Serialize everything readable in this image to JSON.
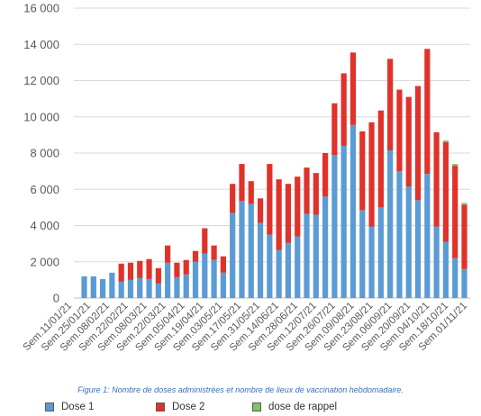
{
  "chart_data": {
    "type": "bar",
    "stacked": true,
    "caption": "Figure 1: Nombre de doses administrées et nombre de lieux de vaccination hebdomadaire.",
    "ylim": [
      0,
      16000
    ],
    "y_ticks": [
      "0",
      "2 000",
      "4 000",
      "6 000",
      "8 000",
      "10 000",
      "12 000",
      "14 000",
      "16 000"
    ],
    "y_tick_values": [
      0,
      2000,
      4000,
      6000,
      8000,
      10000,
      12000,
      14000,
      16000
    ],
    "grid": "horizontal",
    "legend_position": "bottom",
    "x_tick_labels": [
      "Sem.11/01/21",
      "Sem.25/01/21",
      "Sem.08/02/21",
      "Sem.22/02/21",
      "Sem.08/03/21",
      "Sem.22/03/21",
      "Sem.05/04/21",
      "Sem.19/04/21",
      "Sem.03/05/21",
      "Sem.17/05/21",
      "Sem.31/05/21",
      "Sem.14/06/21",
      "Sem.28/06/21",
      "Sem.12/07/21",
      "Sem.26/07/21",
      "Sem.09/08/21",
      "Sem.23/08/21",
      "Sem.06/09/21",
      "Sem.20/09/21",
      "Sem.04/10/21",
      "Sem.18/10/21",
      "Sem.01/11/21"
    ],
    "series": [
      {
        "name": "Dose 1",
        "color": "#5b9bd5",
        "values": [
          1200,
          1200,
          1050,
          1400,
          900,
          1000,
          1100,
          1050,
          800,
          1950,
          1150,
          1300,
          2000,
          2450,
          2100,
          1400,
          4700,
          5350,
          5200,
          4150,
          3500,
          2650,
          3050,
          3400,
          4650,
          4600,
          5600,
          7900,
          8400,
          9550,
          4850,
          3950,
          5000,
          8150,
          7000,
          6150,
          5400,
          6850,
          3950,
          3100,
          2200,
          1600
        ]
      },
      {
        "name": "Dose 2",
        "color": "#e0322b",
        "values": [
          0,
          0,
          0,
          0,
          1000,
          950,
          950,
          1100,
          850,
          950,
          800,
          800,
          600,
          1400,
          800,
          900,
          1600,
          2050,
          1250,
          1350,
          3900,
          3900,
          3250,
          3300,
          2550,
          2300,
          2400,
          2850,
          4000,
          4000,
          4350,
          5750,
          5350,
          5050,
          4500,
          4950,
          6300,
          6900,
          5200,
          5500,
          5100,
          3550
        ]
      },
      {
        "name": "dose de rappel",
        "color": "#7fc466",
        "values": [
          0,
          0,
          0,
          0,
          0,
          0,
          0,
          0,
          0,
          0,
          0,
          0,
          0,
          0,
          0,
          0,
          0,
          0,
          0,
          0,
          0,
          0,
          0,
          0,
          0,
          0,
          0,
          0,
          0,
          0,
          0,
          0,
          0,
          0,
          0,
          0,
          0,
          0,
          0,
          100,
          100,
          100
        ]
      }
    ]
  }
}
